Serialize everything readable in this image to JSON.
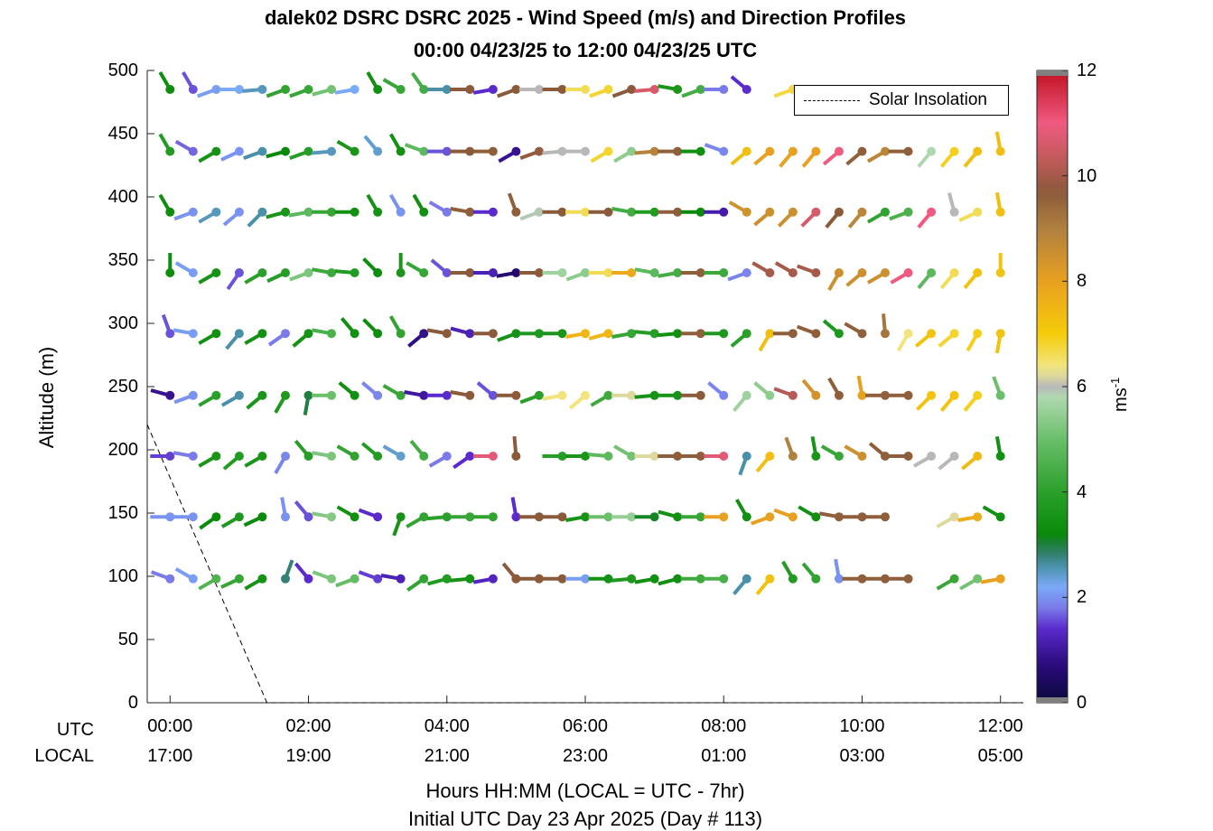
{
  "title_line1": "dalek02 DSRC DSRC 2025 - Wind Speed (m/s) and Direction Profiles",
  "title_line2": "00:00 04/23/25 to 12:00 04/23/25  UTC",
  "legend": {
    "solar": "Solar Insolation"
  },
  "colorbar": {
    "label_base": "ms",
    "label_exp": "-1",
    "ticks": [
      "0",
      "2",
      "4",
      "6",
      "8",
      "10",
      "12"
    ],
    "range": [
      0,
      12
    ]
  },
  "x_row_labels": {
    "utc": "UTC",
    "local": "LOCAL"
  },
  "x_labels": {
    "line1": "Hours HH:MM  (LOCAL = UTC - 7hr)",
    "line2": "Initial UTC Day 23 Apr 2025 (Day # 113)"
  },
  "chart_data": {
    "type": "scatter",
    "ylabel": "Altitude (m)",
    "ylim": [
      0,
      500
    ],
    "xlim_hours": [
      -0.33,
      12.33
    ],
    "y_ticks": [
      "0",
      "50",
      "100",
      "150",
      "200",
      "250",
      "300",
      "350",
      "400",
      "450",
      "500"
    ],
    "x_ticks_utc": [
      "00:00",
      "02:00",
      "04:00",
      "06:00",
      "08:00",
      "10:00",
      "12:00"
    ],
    "x_ticks_local": [
      "17:00",
      "19:00",
      "21:00",
      "23:00",
      "01:00",
      "03:00",
      "05:00"
    ],
    "altitudes_m": [
      98,
      147,
      195,
      243,
      292,
      340,
      388,
      436,
      485
    ],
    "time_step_min": 20,
    "times_hours": [
      0,
      0.333,
      0.667,
      1,
      1.333,
      1.667,
      2,
      2.333,
      2.667,
      3,
      3.333,
      3.667,
      4,
      4.333,
      4.667,
      5,
      5.333,
      5.667,
      6,
      6.333,
      6.667,
      7,
      7.333,
      7.667,
      8,
      8.333,
      8.667,
      9,
      9.333,
      9.667,
      10,
      10.333,
      10.667,
      11,
      11.333,
      11.667,
      12
    ],
    "wind_speed_ms": [
      [
        1.8,
        2.1,
        4.6,
        4.2,
        3.5,
        2.8,
        1.4,
        5.2,
        4.9,
        1.5,
        1.2,
        4.1,
        3.8,
        3.5,
        1.3,
        9.7,
        9.7,
        9.7,
        2.1,
        3.5,
        3.7,
        3.4,
        3.4,
        4.3,
        4.5,
        2.6,
        7.2,
        3.8,
        4.1,
        2.0,
        9.6,
        9.6,
        9.6,
        null,
        4.2,
        5.1,
        8.0
      ],
      [
        2.0,
        2.0,
        3.2,
        3.7,
        3.2,
        2.0,
        1.6,
        5.3,
        3.4,
        1.4,
        3.5,
        4.1,
        4.0,
        4.2,
        4.1,
        1.4,
        9.7,
        9.7,
        3.5,
        5.0,
        5.5,
        3.1,
        3.4,
        4.2,
        8.0,
        3.4,
        8.0,
        8.0,
        3.4,
        9.6,
        9.6,
        9.6,
        null,
        null,
        6.2,
        7.7,
        3.4
      ],
      [
        1.5,
        1.8,
        3.6,
        3.8,
        3.6,
        1.9,
        3.9,
        5.2,
        4.1,
        3.8,
        2.4,
        4.4,
        1.8,
        1.4,
        10.8,
        9.7,
        null,
        3.9,
        3.6,
        4.8,
        5.1,
        6.2,
        9.6,
        9.6,
        10.8,
        2.6,
        7.3,
        9.0,
        3.6,
        4.2,
        8.5,
        9.6,
        9.6,
        6.0,
        6.0,
        7.4,
        3.4
      ],
      [
        0.9,
        2.0,
        4.0,
        2.6,
        3.6,
        3.7,
        3.0,
        5.0,
        3.4,
        1.9,
        4.2,
        1.0,
        1.4,
        9.7,
        1.6,
        9.7,
        4.0,
        6.4,
        6.4,
        4.3,
        6.2,
        3.5,
        3.5,
        9.7,
        1.9,
        5.6,
        5.4,
        10.2,
        8.4,
        9.6,
        8.0,
        9.6,
        9.6,
        7.2,
        7.2,
        6.9,
        5.0
      ],
      [
        1.6,
        2.1,
        3.4,
        2.6,
        3.4,
        1.8,
        3.5,
        4.5,
        3.4,
        3.3,
        4.1,
        0.8,
        9.7,
        1.2,
        9.7,
        3.5,
        3.7,
        3.6,
        7.5,
        7.5,
        4.2,
        3.9,
        3.4,
        9.6,
        3.7,
        4.0,
        7.3,
        9.6,
        9.6,
        3.7,
        9.6,
        9.2,
        6.4,
        7.2,
        6.8,
        6.9,
        7.2
      ],
      [
        3.3,
        2.1,
        3.5,
        1.6,
        4.0,
        3.9,
        5.2,
        4.3,
        3.8,
        3.3,
        3.6,
        4.2,
        1.6,
        9.7,
        1.2,
        0.6,
        9.7,
        5.6,
        5.4,
        6.6,
        7.8,
        4.8,
        4.4,
        9.6,
        4.3,
        1.9,
        10.0,
        10.0,
        10.0,
        8.5,
        8.5,
        8.5,
        11.0,
        4.8,
        6.6,
        7.2,
        7.2
      ],
      [
        3.3,
        2.0,
        2.5,
        2.0,
        2.6,
        3.6,
        4.8,
        4.2,
        3.4,
        3.5,
        2.0,
        3.4,
        1.8,
        9.6,
        1.4,
        9.6,
        5.9,
        9.7,
        6.6,
        9.7,
        4.4,
        3.8,
        9.6,
        3.2,
        1.1,
        8.4,
        8.5,
        8.5,
        10.6,
        9.7,
        8.8,
        4.1,
        4.5,
        11.0,
        6.0,
        6.6,
        7.3
      ],
      [
        3.8,
        1.7,
        3.5,
        2.0,
        2.6,
        3.2,
        3.9,
        2.5,
        3.6,
        2.4,
        3.4,
        4.8,
        1.6,
        9.7,
        9.6,
        0.9,
        9.8,
        6.0,
        6.0,
        6.8,
        5.4,
        8.9,
        9.6,
        3.4,
        1.9,
        7.3,
        8.0,
        8.0,
        8.0,
        11.0,
        9.6,
        8.8,
        9.6,
        5.8,
        6.9,
        7.3,
        7.3
      ],
      [
        3.3,
        1.6,
        2.1,
        2.2,
        2.5,
        4.1,
        4.2,
        5.1,
        2.2,
        3.4,
        4.2,
        4.4,
        2.6,
        9.7,
        1.4,
        9.7,
        6.0,
        9.7,
        6.6,
        6.8,
        9.7,
        10.6,
        3.6,
        4.4,
        1.8,
        1.4,
        null,
        6.7,
        6.6,
        10.6,
        9.7,
        8.8,
        9.7,
        null,
        6.9,
        6.8,
        7.3
      ]
    ],
    "wind_dir_deg": [
      [
        290,
        300,
        240,
        245,
        240,
        20,
        320,
        290,
        250,
        290,
        280,
        235,
        255,
        265,
        260,
        320,
        270,
        270,
        270,
        270,
        265,
        260,
        255,
        270,
        270,
        220,
        220,
        330,
        320,
        350,
        270,
        270,
        270,
        null,
        240,
        240,
        260
      ],
      [
        270,
        270,
        235,
        240,
        245,
        350,
        320,
        280,
        300,
        290,
        200,
        240,
        265,
        270,
        270,
        350,
        270,
        270,
        260,
        270,
        270,
        270,
        285,
        270,
        270,
        330,
        250,
        290,
        300,
        280,
        270,
        270,
        null,
        null,
        240,
        260,
        300
      ],
      [
        270,
        280,
        240,
        230,
        240,
        210,
        320,
        280,
        300,
        310,
        300,
        320,
        240,
        235,
        270,
        355,
        null,
        270,
        270,
        275,
        300,
        270,
        270,
        270,
        270,
        200,
        220,
        340,
        350,
        300,
        300,
        310,
        270,
        240,
        230,
        230,
        350
      ],
      [
        285,
        250,
        240,
        240,
        230,
        210,
        190,
        270,
        310,
        310,
        300,
        280,
        270,
        280,
        310,
        270,
        250,
        260,
        230,
        240,
        270,
        265,
        270,
        270,
        310,
        220,
        310,
        290,
        320,
        330,
        350,
        270,
        270,
        225,
        220,
        220,
        340
      ],
      [
        340,
        280,
        240,
        220,
        240,
        235,
        230,
        280,
        320,
        315,
        330,
        230,
        280,
        285,
        270,
        250,
        270,
        270,
        260,
        255,
        260,
        275,
        265,
        270,
        270,
        230,
        210,
        270,
        290,
        310,
        300,
        355,
        210,
        230,
        230,
        210,
        190
      ],
      [
        360,
        300,
        240,
        215,
        240,
        245,
        250,
        280,
        275,
        315,
        360,
        300,
        310,
        270,
        270,
        260,
        270,
        270,
        250,
        270,
        270,
        280,
        260,
        270,
        270,
        250,
        300,
        300,
        290,
        210,
        230,
        240,
        240,
        220,
        220,
        220,
        360
      ],
      [
        330,
        250,
        240,
        230,
        225,
        255,
        260,
        270,
        270,
        330,
        330,
        330,
        300,
        280,
        270,
        340,
        250,
        270,
        270,
        270,
        280,
        270,
        270,
        270,
        270,
        300,
        230,
        225,
        225,
        220,
        220,
        240,
        250,
        220,
        345,
        245,
        350
      ],
      [
        330,
        300,
        240,
        245,
        250,
        255,
        250,
        265,
        300,
        320,
        330,
        290,
        270,
        270,
        270,
        240,
        250,
        265,
        270,
        240,
        240,
        265,
        270,
        270,
        290,
        230,
        230,
        220,
        220,
        230,
        230,
        240,
        270,
        220,
        220,
        220,
        350
      ],
      [
        330,
        330,
        250,
        270,
        265,
        250,
        250,
        255,
        260,
        330,
        300,
        325,
        270,
        270,
        260,
        250,
        270,
        270,
        270,
        250,
        250,
        265,
        280,
        250,
        270,
        310,
        null,
        250,
        250,
        260,
        270,
        240,
        250,
        null,
        220,
        240,
        255
      ]
    ],
    "solar_insolation_hours": [
      -0.33,
      1.4,
      12.33
    ],
    "solar_insolation_y_m": [
      220,
      0,
      0
    ]
  }
}
